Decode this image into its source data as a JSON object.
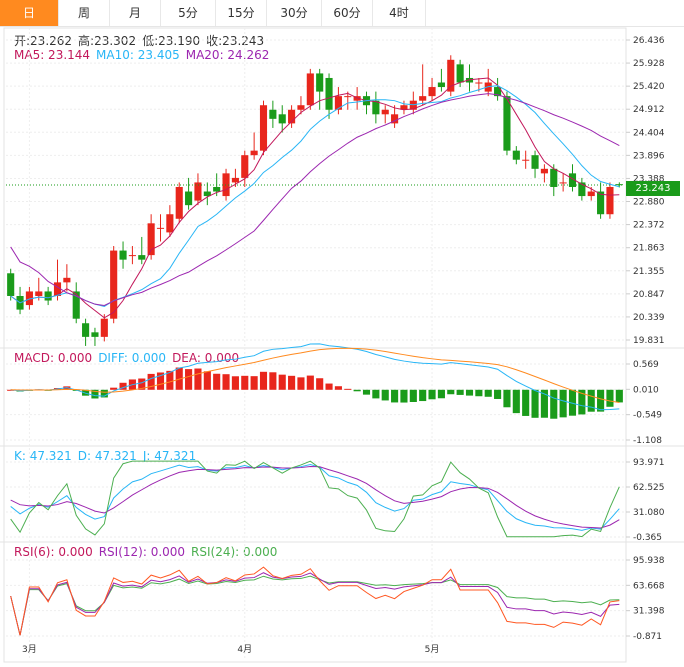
{
  "tabs": [
    {
      "label": "日",
      "active": true
    },
    {
      "label": "周"
    },
    {
      "label": "月"
    },
    {
      "label": "5分"
    },
    {
      "label": "15分"
    },
    {
      "label": "30分"
    },
    {
      "label": "60分"
    },
    {
      "label": "4时"
    }
  ],
  "ohlc": {
    "open": "开:23.262",
    "high": "高:23.302",
    "low": "低:23.190",
    "close": "收:23.243"
  },
  "ma": {
    "ma5": "MA5: 23.144",
    "ma10": "MA10: 23.405",
    "ma20": "MA20: 24.262"
  },
  "macd_legend": {
    "macd": "MACD: 0.000",
    "diff": "DIFF: 0.000",
    "dea": "DEA: 0.000"
  },
  "kdj_legend": {
    "k": "K: 47.321",
    "d": "D: 47.321",
    "j": "J: 47.321"
  },
  "rsi_legend": {
    "rsi6": "RSI(6): 0.000",
    "rsi12": "RSI(12): 0.000",
    "rsi24": "RSI(24): 0.000"
  },
  "last_price": "23.243",
  "colors": {
    "up": "#e8261c",
    "down": "#1a9b1a",
    "ma5": "#c2185b",
    "ma10": "#29b6f6",
    "ma20": "#9c27b0",
    "tab_active": "#ff8a1f",
    "diff": "#29b6f6",
    "dea": "#ff8a1f"
  },
  "chart_data": [
    {
      "type": "candlestick",
      "title": "",
      "yticks": [
        "26.436",
        "25.928",
        "25.420",
        "24.912",
        "24.404",
        "23.896",
        "23.388",
        "22.880",
        "22.372",
        "21.863",
        "21.355",
        "20.847",
        "20.339",
        "19.831"
      ],
      "ylim": [
        19.831,
        26.436
      ],
      "xticks": [
        {
          "label": "3月",
          "index": 2
        },
        {
          "label": "4月",
          "index": 25
        },
        {
          "label": "5月",
          "index": 45
        }
      ],
      "candles": [
        [
          21.3,
          20.8,
          21.4,
          20.7
        ],
        [
          20.8,
          20.5,
          21.0,
          20.4
        ],
        [
          20.6,
          20.9,
          21.0,
          20.5
        ],
        [
          20.8,
          20.9,
          21.2,
          20.7
        ],
        [
          20.9,
          20.7,
          21.0,
          20.6
        ],
        [
          20.8,
          21.1,
          21.6,
          20.7
        ],
        [
          21.1,
          21.2,
          21.5,
          20.9
        ],
        [
          20.9,
          20.3,
          21.1,
          20.2
        ],
        [
          20.2,
          19.9,
          20.3,
          19.7
        ],
        [
          20.0,
          19.9,
          20.1,
          19.7
        ],
        [
          19.9,
          20.3,
          20.4,
          19.8
        ],
        [
          20.3,
          21.8,
          21.9,
          20.2
        ],
        [
          21.8,
          21.6,
          22.0,
          21.4
        ],
        [
          21.7,
          21.7,
          21.9,
          21.5
        ],
        [
          21.7,
          21.6,
          22.1,
          21.5
        ],
        [
          21.7,
          22.4,
          22.6,
          21.6
        ],
        [
          22.3,
          22.3,
          22.6,
          22.0
        ],
        [
          22.2,
          22.6,
          22.8,
          22.1
        ],
        [
          22.5,
          23.2,
          23.3,
          22.4
        ],
        [
          23.1,
          22.8,
          23.4,
          22.7
        ],
        [
          22.9,
          23.3,
          23.5,
          22.8
        ],
        [
          23.1,
          23.0,
          23.3,
          22.8
        ],
        [
          23.2,
          23.1,
          23.5,
          23.0
        ],
        [
          23.0,
          23.5,
          23.6,
          22.9
        ],
        [
          23.3,
          23.4,
          23.6,
          23.2
        ],
        [
          23.4,
          23.9,
          24.0,
          23.2
        ],
        [
          23.9,
          24.0,
          24.4,
          23.8
        ],
        [
          24.0,
          25.0,
          25.1,
          23.9
        ],
        [
          24.9,
          24.7,
          25.1,
          24.5
        ],
        [
          24.8,
          24.6,
          25.0,
          24.4
        ],
        [
          24.6,
          24.9,
          25.0,
          24.5
        ],
        [
          24.9,
          25.0,
          25.2,
          24.8
        ],
        [
          25.0,
          25.7,
          25.8,
          24.9
        ],
        [
          25.7,
          25.3,
          25.8,
          24.9
        ],
        [
          25.6,
          24.9,
          25.7,
          24.7
        ],
        [
          24.9,
          25.2,
          25.4,
          24.8
        ],
        [
          25.2,
          25.2,
          25.3,
          24.9
        ],
        [
          25.1,
          25.2,
          25.4,
          24.9
        ],
        [
          25.2,
          25.0,
          25.3,
          24.8
        ],
        [
          25.1,
          24.8,
          25.3,
          24.6
        ],
        [
          24.8,
          24.9,
          25.0,
          24.6
        ],
        [
          24.6,
          24.8,
          25.0,
          24.5
        ],
        [
          24.9,
          25.0,
          25.1,
          24.8
        ],
        [
          24.9,
          25.1,
          25.3,
          24.8
        ],
        [
          25.1,
          25.2,
          25.9,
          25.0
        ],
        [
          25.2,
          25.4,
          25.6,
          25.1
        ],
        [
          25.5,
          25.4,
          25.8,
          25.3
        ],
        [
          25.3,
          26.0,
          26.1,
          25.2
        ],
        [
          25.9,
          25.5,
          26.0,
          25.4
        ],
        [
          25.6,
          25.5,
          25.9,
          25.3
        ],
        [
          25.5,
          25.5,
          25.6,
          25.3
        ],
        [
          25.3,
          25.5,
          25.8,
          25.2
        ],
        [
          25.4,
          25.2,
          25.6,
          25.1
        ],
        [
          25.2,
          24.0,
          25.3,
          23.9
        ],
        [
          24.0,
          23.8,
          24.1,
          23.7
        ],
        [
          23.8,
          23.8,
          24.0,
          23.6
        ],
        [
          23.9,
          23.6,
          24.0,
          23.4
        ],
        [
          23.5,
          23.6,
          23.7,
          23.3
        ],
        [
          23.6,
          23.2,
          23.7,
          23.0
        ],
        [
          23.3,
          23.3,
          23.5,
          23.1
        ],
        [
          23.5,
          23.2,
          23.7,
          23.1
        ],
        [
          23.3,
          23.0,
          23.4,
          22.9
        ],
        [
          23.0,
          23.1,
          23.2,
          22.9
        ],
        [
          23.1,
          22.6,
          23.3,
          22.5
        ],
        [
          22.6,
          23.2,
          23.3,
          22.5
        ],
        [
          23.262,
          23.243,
          23.302,
          23.19
        ]
      ]
    },
    {
      "type": "macd",
      "yticks": [
        "0.569",
        "0.010",
        "-0.549",
        "-1.108"
      ],
      "ylim": [
        -1.108,
        0.569
      ]
    },
    {
      "type": "kdj",
      "yticks": [
        "93.971",
        "62.525",
        "31.080",
        "-0.365"
      ],
      "ylim": [
        -0.365,
        93.971
      ]
    },
    {
      "type": "rsi",
      "yticks": [
        "95.938",
        "63.668",
        "31.398",
        "-0.871"
      ],
      "ylim": [
        -0.871,
        95.938
      ]
    }
  ]
}
